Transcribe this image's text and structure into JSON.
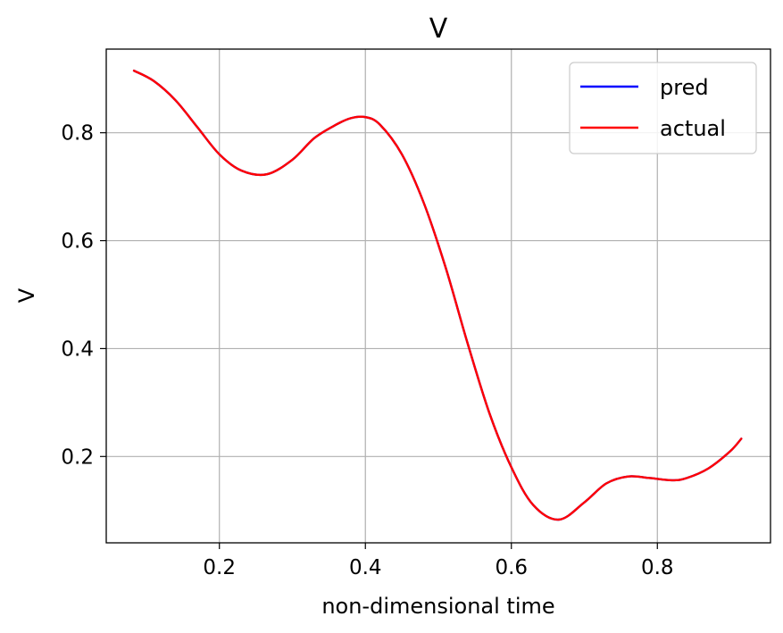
{
  "chart_data": {
    "type": "line",
    "title": "V",
    "xlabel": "non-dimensional time",
    "ylabel": "V",
    "xlim": [
      0.045,
      0.955
    ],
    "ylim": [
      0.04,
      0.955
    ],
    "xticks": [
      0.2,
      0.4,
      0.6,
      0.8
    ],
    "yticks": [
      0.2,
      0.4,
      0.6,
      0.8
    ],
    "xtick_labels": [
      "0.2",
      "0.4",
      "0.6",
      "0.8"
    ],
    "ytick_labels": [
      "0.2",
      "0.4",
      "0.6",
      "0.8"
    ],
    "grid": true,
    "legend_position": "top-right",
    "series": [
      {
        "name": "pred",
        "color": "#0000ff",
        "x": [
          0.083,
          0.11,
          0.14,
          0.17,
          0.2,
          0.23,
          0.265,
          0.3,
          0.33,
          0.36,
          0.38,
          0.4,
          0.42,
          0.45,
          0.48,
          0.51,
          0.54,
          0.57,
          0.6,
          0.63,
          0.665,
          0.7,
          0.73,
          0.76,
          0.79,
          0.82,
          0.84,
          0.87,
          0.9,
          0.915
        ],
        "y": [
          0.915,
          0.896,
          0.86,
          0.81,
          0.76,
          0.73,
          0.723,
          0.75,
          0.79,
          0.815,
          0.827,
          0.829,
          0.815,
          0.76,
          0.67,
          0.55,
          0.41,
          0.28,
          0.18,
          0.11,
          0.083,
          0.115,
          0.15,
          0.163,
          0.16,
          0.156,
          0.16,
          0.178,
          0.21,
          0.233
        ]
      },
      {
        "name": "actual",
        "color": "#ff0000",
        "x": [
          0.083,
          0.11,
          0.14,
          0.17,
          0.2,
          0.23,
          0.265,
          0.3,
          0.33,
          0.36,
          0.38,
          0.4,
          0.42,
          0.45,
          0.48,
          0.51,
          0.54,
          0.57,
          0.6,
          0.63,
          0.665,
          0.7,
          0.73,
          0.76,
          0.79,
          0.82,
          0.84,
          0.87,
          0.9,
          0.915
        ],
        "y": [
          0.915,
          0.896,
          0.86,
          0.81,
          0.76,
          0.73,
          0.723,
          0.75,
          0.79,
          0.815,
          0.827,
          0.829,
          0.815,
          0.76,
          0.67,
          0.55,
          0.41,
          0.28,
          0.18,
          0.11,
          0.083,
          0.115,
          0.15,
          0.163,
          0.16,
          0.156,
          0.16,
          0.178,
          0.21,
          0.233
        ]
      }
    ]
  }
}
